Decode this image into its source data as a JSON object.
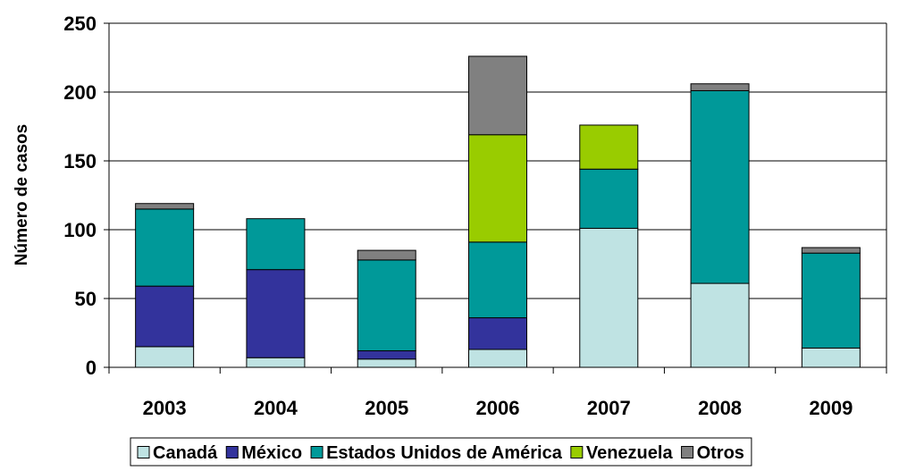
{
  "chart_data": {
    "type": "bar",
    "stacked": true,
    "title": "",
    "xlabel": "",
    "ylabel": "Número de casos",
    "ylim": [
      0,
      250
    ],
    "yticks": [
      "0",
      "50",
      "100",
      "150",
      "200",
      "250"
    ],
    "categories": [
      "2003",
      "2004",
      "2005",
      "2006",
      "2007",
      "2008",
      "2009"
    ],
    "series": [
      {
        "name": "Canadá",
        "color": "#bfe3e3",
        "values": [
          15,
          7,
          6,
          13,
          101,
          61,
          14
        ]
      },
      {
        "name": "México",
        "color": "#33339c",
        "values": [
          44,
          64,
          6,
          23,
          0,
          0,
          0
        ]
      },
      {
        "name": "Estados Unidos de América",
        "color": "#009999",
        "values": [
          56,
          37,
          66,
          55,
          43,
          140,
          69
        ]
      },
      {
        "name": "Venezuela",
        "color": "#99cc00",
        "values": [
          0,
          0,
          0,
          78,
          32,
          0,
          0
        ]
      },
      {
        "name": "Otros",
        "color": "#808080",
        "values": [
          4,
          0,
          7,
          57,
          0,
          5,
          4
        ]
      }
    ],
    "grid": true,
    "legend_position": "bottom"
  }
}
